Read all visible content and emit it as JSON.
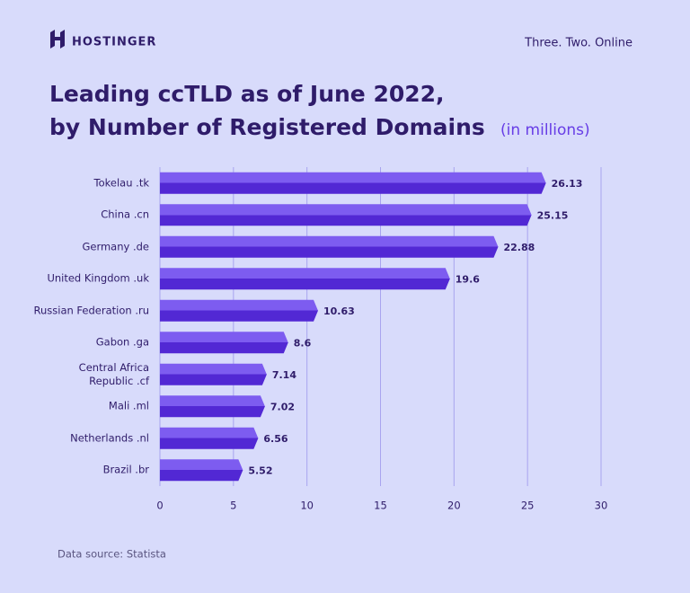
{
  "brand": "HOSTINGER",
  "tagline": "Three. Two. Online",
  "chart_data": {
    "type": "bar",
    "orientation": "horizontal",
    "title": [
      "Leading ccTLD as of June 2022,",
      "by Number of Registered Domains"
    ],
    "subtitle": "(in millions)",
    "categories": [
      "Tokelau .tk",
      "China .cn",
      "Germany .de",
      "United Kingdom .uk",
      "Russian Federation .ru",
      "Gabon .ga",
      "Central Africa\nRepublic .cf",
      "Mali .ml",
      "Netherlands .nl",
      "Brazil .br"
    ],
    "values": [
      26.13,
      25.15,
      22.88,
      19.6,
      10.63,
      8.6,
      7.14,
      7.02,
      6.56,
      5.52
    ],
    "color": "#673de6",
    "xlim": [
      0,
      30
    ],
    "xticks": [
      0,
      5,
      10,
      15,
      20,
      25,
      30
    ],
    "grid": true,
    "source": "Data source: Statista"
  }
}
